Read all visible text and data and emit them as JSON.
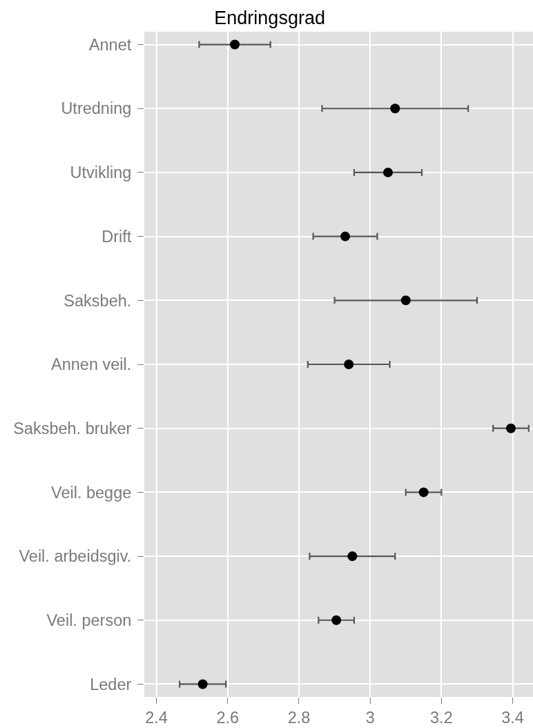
{
  "chart_data": {
    "type": "scatter",
    "orientation": "horizontal",
    "title": "Endringsgrad",
    "categories": [
      "Annet",
      "Utredning",
      "Utvikling",
      "Drift",
      "Saksbeh.",
      "Annen veil.",
      "Saksbeh. bruker",
      "Veil. begge",
      "Veil. arbeidsgiv.",
      "Veil. person",
      "Leder"
    ],
    "values": [
      2.62,
      3.07,
      3.05,
      2.93,
      3.1,
      2.94,
      3.395,
      3.15,
      2.95,
      2.905,
      2.53
    ],
    "errors": [
      0.1,
      0.205,
      0.095,
      0.09,
      0.2,
      0.115,
      0.05,
      0.05,
      0.12,
      0.05,
      0.065
    ],
    "color": "#000000",
    "marker": "circle",
    "xlim": [
      2.366,
      3.457
    ],
    "xticks": [
      2.4,
      2.6,
      2.8,
      3,
      3.2,
      3.4
    ],
    "grid": true
  }
}
